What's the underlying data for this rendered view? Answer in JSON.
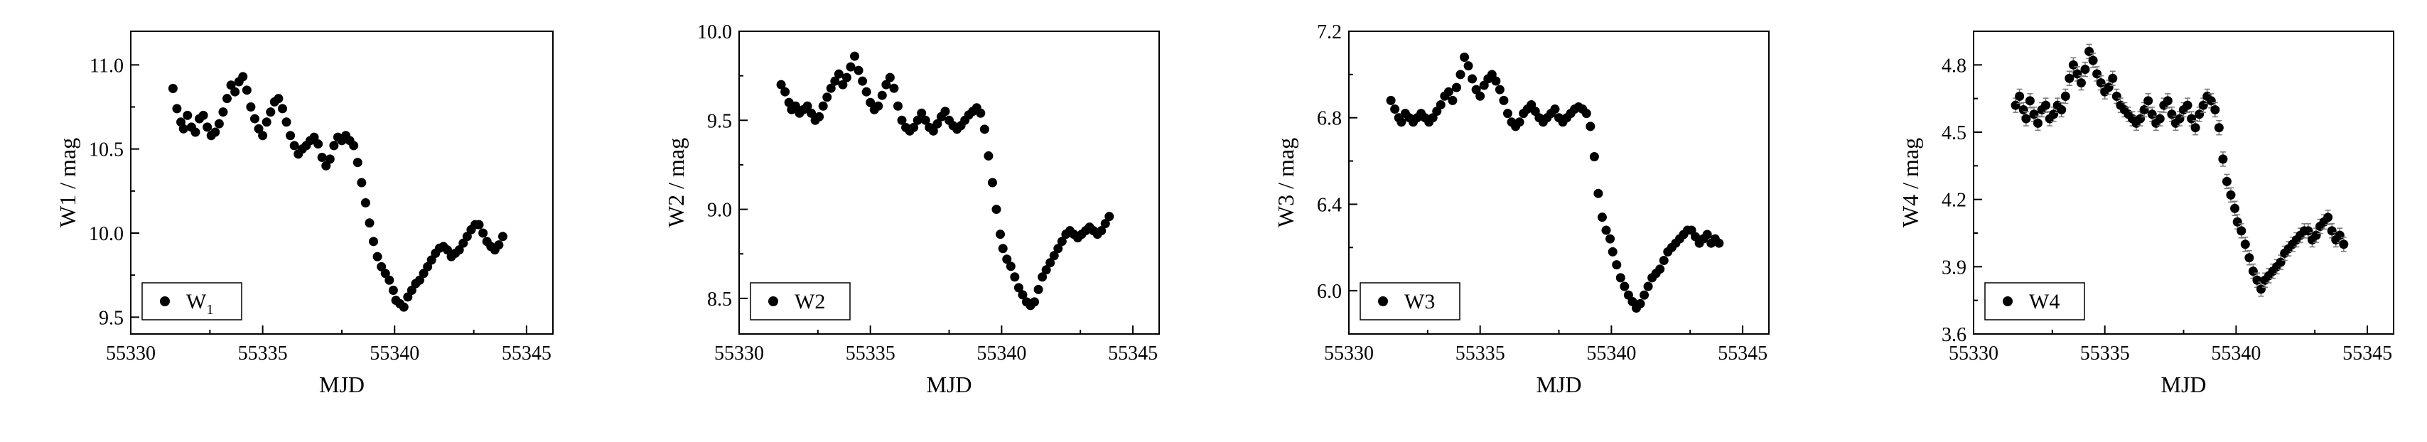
{
  "chart_data": [
    {
      "type": "scatter",
      "xlabel": "MJD",
      "ylabel": "W1 / mag",
      "legend": {
        "label": "W",
        "sub": "1",
        "placement": "bottom-left"
      },
      "xlim": [
        55330,
        55346
      ],
      "ylim": [
        9.4,
        11.2
      ],
      "xticks": [
        55330,
        55335,
        55340,
        55345
      ],
      "xtick_labels": [
        "55330",
        "55335",
        "55340",
        "55345"
      ],
      "yticks": [
        9.5,
        10.0,
        10.5,
        11.0
      ],
      "ytick_labels": [
        "9.5",
        "10.0",
        "10.5",
        "11.0"
      ],
      "error_bars": false,
      "grid": false,
      "series": [
        {
          "x": [
            55331.6,
            55331.75,
            55331.9,
            55332.0,
            55332.15,
            55332.3,
            55332.45,
            55332.6,
            55332.75,
            55332.9,
            55333.05,
            55333.2,
            55333.35,
            55333.5,
            55333.65,
            55333.8,
            55333.95,
            55334.1,
            55334.25,
            55334.4,
            55334.55,
            55334.7,
            55334.85,
            55335.0,
            55335.15,
            55335.3,
            55335.45,
            55335.6,
            55335.75,
            55335.9,
            55336.05,
            55336.2,
            55336.35,
            55336.5,
            55336.65,
            55336.8,
            55336.95,
            55337.1,
            55337.25,
            55337.4,
            55337.55,
            55337.7,
            55337.85,
            55338.0,
            55338.15,
            55338.3,
            55338.45,
            55338.6,
            55338.75,
            55338.9,
            55339.05,
            55339.2,
            55339.35,
            55339.5,
            55339.65,
            55339.8,
            55339.95,
            55340.05,
            55340.2,
            55340.35,
            55340.5,
            55340.65,
            55340.8,
            55340.95,
            55341.1,
            55341.25,
            55341.4,
            55341.55,
            55341.7,
            55341.85,
            55342.0,
            55342.15,
            55342.3,
            55342.45,
            55342.6,
            55342.75,
            55342.9,
            55343.05,
            55343.2,
            55343.35,
            55343.5,
            55343.65,
            55343.8,
            55343.95,
            55344.1
          ],
          "y": [
            10.86,
            10.74,
            10.66,
            10.62,
            10.7,
            10.63,
            10.6,
            10.68,
            10.7,
            10.63,
            10.58,
            10.6,
            10.65,
            10.72,
            10.8,
            10.88,
            10.84,
            10.9,
            10.93,
            10.85,
            10.75,
            10.68,
            10.62,
            10.58,
            10.66,
            10.72,
            10.78,
            10.8,
            10.74,
            10.66,
            10.58,
            10.52,
            10.47,
            10.5,
            10.52,
            10.55,
            10.57,
            10.53,
            10.45,
            10.4,
            10.44,
            10.52,
            10.57,
            10.55,
            10.58,
            10.55,
            10.52,
            10.42,
            10.3,
            10.18,
            10.06,
            9.95,
            9.86,
            9.8,
            9.76,
            9.72,
            9.66,
            9.6,
            9.58,
            9.56,
            9.62,
            9.66,
            9.7,
            9.72,
            9.76,
            9.8,
            9.84,
            9.88,
            9.91,
            9.92,
            9.9,
            9.86,
            9.88,
            9.9,
            9.94,
            9.98,
            10.02,
            10.05,
            10.05,
            10.0,
            9.95,
            9.92,
            9.9,
            9.93,
            9.98
          ]
        }
      ]
    },
    {
      "type": "scatter",
      "xlabel": "MJD",
      "ylabel": "W2 / mag",
      "legend": {
        "label": "W2",
        "sub": "",
        "placement": "bottom-left"
      },
      "xlim": [
        55330,
        55346
      ],
      "ylim": [
        8.3,
        10.0
      ],
      "xticks": [
        55330,
        55335,
        55340,
        55345
      ],
      "xtick_labels": [
        "55330",
        "55335",
        "55340",
        "55345"
      ],
      "yticks": [
        8.5,
        9.0,
        9.5,
        10.0
      ],
      "ytick_labels": [
        "8.5",
        "9.0",
        "9.5",
        "10.0"
      ],
      "error_bars": false,
      "grid": false,
      "series": [
        {
          "x": [
            55331.6,
            55331.75,
            55331.9,
            55332.0,
            55332.15,
            55332.3,
            55332.45,
            55332.6,
            55332.75,
            55332.9,
            55333.05,
            55333.2,
            55333.35,
            55333.5,
            55333.65,
            55333.8,
            55333.95,
            55334.1,
            55334.25,
            55334.4,
            55334.55,
            55334.7,
            55334.85,
            55335.0,
            55335.15,
            55335.3,
            55335.45,
            55335.6,
            55335.75,
            55335.9,
            55336.05,
            55336.2,
            55336.35,
            55336.5,
            55336.65,
            55336.8,
            55336.95,
            55337.1,
            55337.25,
            55337.4,
            55337.55,
            55337.7,
            55337.85,
            55338.0,
            55338.15,
            55338.3,
            55338.45,
            55338.6,
            55338.75,
            55338.9,
            55339.05,
            55339.2,
            55339.35,
            55339.5,
            55339.65,
            55339.8,
            55339.95,
            55340.05,
            55340.2,
            55340.35,
            55340.5,
            55340.65,
            55340.8,
            55340.95,
            55341.1,
            55341.25,
            55341.4,
            55341.55,
            55341.7,
            55341.85,
            55342.0,
            55342.15,
            55342.3,
            55342.45,
            55342.6,
            55342.75,
            55342.9,
            55343.05,
            55343.2,
            55343.35,
            55343.5,
            55343.65,
            55343.8,
            55343.95,
            55344.1
          ],
          "y": [
            9.7,
            9.66,
            9.6,
            9.56,
            9.58,
            9.54,
            9.56,
            9.58,
            9.54,
            9.5,
            9.52,
            9.58,
            9.63,
            9.68,
            9.72,
            9.76,
            9.7,
            9.74,
            9.8,
            9.86,
            9.78,
            9.72,
            9.66,
            9.6,
            9.56,
            9.58,
            9.64,
            9.7,
            9.74,
            9.68,
            9.58,
            9.5,
            9.46,
            9.44,
            9.46,
            9.5,
            9.54,
            9.5,
            9.46,
            9.44,
            9.48,
            9.52,
            9.55,
            9.5,
            9.47,
            9.45,
            9.47,
            9.5,
            9.53,
            9.55,
            9.57,
            9.54,
            9.45,
            9.3,
            9.15,
            9.0,
            8.86,
            8.78,
            8.72,
            8.68,
            8.62,
            8.56,
            8.52,
            8.48,
            8.46,
            8.48,
            8.55,
            8.62,
            8.66,
            8.7,
            8.74,
            8.78,
            8.82,
            8.86,
            8.88,
            8.86,
            8.84,
            8.86,
            8.88,
            8.9,
            8.88,
            8.86,
            8.88,
            8.92,
            8.96
          ]
        }
      ]
    },
    {
      "type": "scatter",
      "xlabel": "MJD",
      "ylabel": "W3 / mag",
      "legend": {
        "label": "W3",
        "sub": "",
        "placement": "bottom-left"
      },
      "xlim": [
        55330,
        55346
      ],
      "ylim": [
        5.8,
        7.2
      ],
      "xticks": [
        55330,
        55335,
        55340,
        55345
      ],
      "xtick_labels": [
        "55330",
        "55335",
        "55340",
        "55345"
      ],
      "yticks": [
        6.0,
        6.4,
        6.8,
        7.2
      ],
      "ytick_labels": [
        "6.0",
        "6.4",
        "6.8",
        "7.2"
      ],
      "error_bars": false,
      "grid": false,
      "series": [
        {
          "x": [
            55331.6,
            55331.75,
            55331.9,
            55332.0,
            55332.15,
            55332.3,
            55332.45,
            55332.6,
            55332.75,
            55332.9,
            55333.05,
            55333.2,
            55333.35,
            55333.5,
            55333.65,
            55333.8,
            55333.95,
            55334.1,
            55334.25,
            55334.4,
            55334.55,
            55334.7,
            55334.85,
            55335.0,
            55335.15,
            55335.3,
            55335.45,
            55335.6,
            55335.75,
            55335.9,
            55336.05,
            55336.2,
            55336.35,
            55336.5,
            55336.65,
            55336.8,
            55336.95,
            55337.1,
            55337.25,
            55337.4,
            55337.55,
            55337.7,
            55337.85,
            55338.0,
            55338.15,
            55338.3,
            55338.45,
            55338.6,
            55338.75,
            55338.9,
            55339.05,
            55339.2,
            55339.35,
            55339.5,
            55339.65,
            55339.8,
            55339.95,
            55340.05,
            55340.2,
            55340.35,
            55340.5,
            55340.65,
            55340.8,
            55340.95,
            55341.1,
            55341.25,
            55341.4,
            55341.55,
            55341.7,
            55341.85,
            55342.0,
            55342.15,
            55342.3,
            55342.45,
            55342.6,
            55342.75,
            55342.9,
            55343.05,
            55343.2,
            55343.35,
            55343.5,
            55343.65,
            55343.8,
            55343.95,
            55344.1
          ],
          "y": [
            6.88,
            6.84,
            6.8,
            6.78,
            6.82,
            6.8,
            6.78,
            6.8,
            6.82,
            6.8,
            6.78,
            6.8,
            6.83,
            6.86,
            6.9,
            6.92,
            6.88,
            6.94,
            7.0,
            7.08,
            7.04,
            6.98,
            6.93,
            6.9,
            6.95,
            6.98,
            7.0,
            6.97,
            6.93,
            6.88,
            6.82,
            6.78,
            6.76,
            6.78,
            6.82,
            6.84,
            6.86,
            6.83,
            6.8,
            6.78,
            6.8,
            6.82,
            6.84,
            6.8,
            6.78,
            6.8,
            6.82,
            6.84,
            6.85,
            6.84,
            6.82,
            6.76,
            6.62,
            6.45,
            6.34,
            6.28,
            6.24,
            6.18,
            6.12,
            6.06,
            6.02,
            5.98,
            5.95,
            5.92,
            5.94,
            5.98,
            6.02,
            6.06,
            6.08,
            6.1,
            6.14,
            6.18,
            6.2,
            6.22,
            6.24,
            6.26,
            6.28,
            6.28,
            6.25,
            6.22,
            6.24,
            6.26,
            6.22,
            6.24,
            6.22
          ]
        }
      ]
    },
    {
      "type": "scatter",
      "xlabel": "MJD",
      "ylabel": "W4 / mag",
      "legend": {
        "label": "W4",
        "sub": "",
        "placement": "bottom-left"
      },
      "xlim": [
        55330,
        55346
      ],
      "ylim": [
        3.6,
        4.95
      ],
      "xticks": [
        55330,
        55335,
        55340,
        55345
      ],
      "xtick_labels": [
        "55330",
        "55335",
        "55340",
        "55345"
      ],
      "yticks": [
        3.6,
        3.9,
        4.2,
        4.5,
        4.8
      ],
      "ytick_labels": [
        "3.6",
        "3.9",
        "4.2",
        "4.5",
        "4.8"
      ],
      "error_bars": true,
      "grid": false,
      "series": [
        {
          "x": [
            55331.6,
            55331.75,
            55331.9,
            55332.0,
            55332.15,
            55332.3,
            55332.45,
            55332.6,
            55332.75,
            55332.9,
            55333.05,
            55333.2,
            55333.35,
            55333.5,
            55333.65,
            55333.8,
            55333.95,
            55334.1,
            55334.25,
            55334.4,
            55334.55,
            55334.7,
            55334.85,
            55335.0,
            55335.15,
            55335.3,
            55335.45,
            55335.6,
            55335.75,
            55335.9,
            55336.05,
            55336.2,
            55336.35,
            55336.5,
            55336.65,
            55336.8,
            55336.95,
            55337.1,
            55337.25,
            55337.4,
            55337.55,
            55337.7,
            55337.85,
            55338.0,
            55338.15,
            55338.3,
            55338.45,
            55338.6,
            55338.75,
            55338.9,
            55339.05,
            55339.2,
            55339.35,
            55339.5,
            55339.65,
            55339.8,
            55339.95,
            55340.05,
            55340.2,
            55340.35,
            55340.5,
            55340.65,
            55340.8,
            55340.95,
            55341.1,
            55341.25,
            55341.4,
            55341.55,
            55341.7,
            55341.85,
            55342.0,
            55342.15,
            55342.3,
            55342.45,
            55342.6,
            55342.75,
            55342.9,
            55343.05,
            55343.2,
            55343.35,
            55343.5,
            55343.65,
            55343.8,
            55343.95,
            55344.1
          ],
          "y": [
            4.62,
            4.66,
            4.6,
            4.56,
            4.64,
            4.58,
            4.54,
            4.6,
            4.62,
            4.56,
            4.58,
            4.62,
            4.6,
            4.66,
            4.74,
            4.8,
            4.76,
            4.72,
            4.78,
            4.86,
            4.82,
            4.76,
            4.72,
            4.68,
            4.7,
            4.74,
            4.66,
            4.62,
            4.6,
            4.58,
            4.56,
            4.54,
            4.56,
            4.6,
            4.64,
            4.58,
            4.54,
            4.56,
            4.62,
            4.64,
            4.58,
            4.54,
            4.56,
            4.6,
            4.62,
            4.56,
            4.52,
            4.58,
            4.62,
            4.66,
            4.64,
            4.6,
            4.52,
            4.38,
            4.28,
            4.22,
            4.16,
            4.1,
            4.06,
            4.0,
            3.94,
            3.88,
            3.84,
            3.8,
            3.84,
            3.86,
            3.88,
            3.9,
            3.92,
            3.96,
            3.98,
            4.0,
            4.02,
            4.04,
            4.06,
            4.06,
            4.02,
            4.04,
            4.08,
            4.1,
            4.12,
            4.06,
            4.02,
            4.04,
            4.0
          ]
        }
      ]
    }
  ]
}
